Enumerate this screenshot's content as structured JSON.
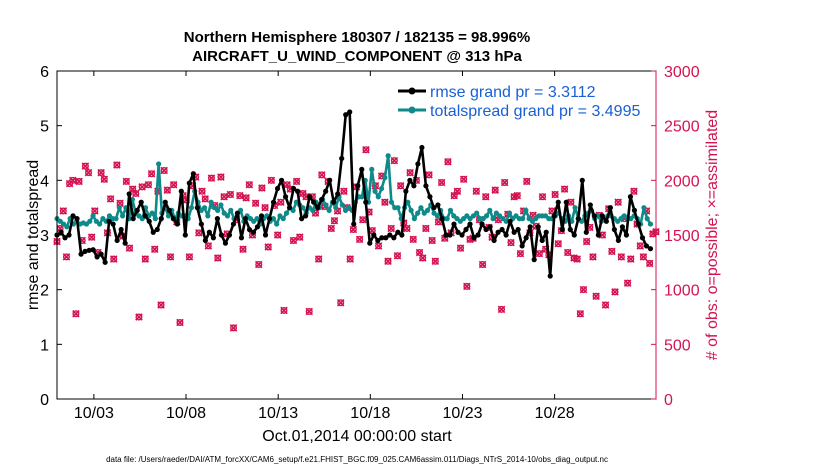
{
  "colors": {
    "rmse": "#000000",
    "spread": "#0f8a8a",
    "obs": "#d3134f",
    "axis": "#000000"
  },
  "chart_data": {
    "type": "line",
    "title": "Northern Hemisphere 180307 / 182135 = 98.996%",
    "subtitle": "AIRCRAFT_U_WIND_COMPONENT @ 313 hPa",
    "xlabel": "Oct.01,2014 00:00:00 start",
    "ylabel": "rmse and totalspread",
    "y2label": "# of obs: o=possible; ×=assimilated",
    "footnote": "data file: /Users/raeder/DAI/ATM_forcXX/CAM6_setup/f.e21.FHIST_BGC.f09_025.CAM6assim.011/Diags_NTrS_2014-10/obs_diag_output.nc",
    "xlim": [
      1,
      33.5
    ],
    "ylim": [
      0,
      6
    ],
    "y2lim": [
      0,
      3000
    ],
    "xticks": [
      3,
      8,
      13,
      18,
      23,
      28
    ],
    "xtick_labels": [
      "10/03",
      "10/08",
      "10/13",
      "10/18",
      "10/23",
      "10/28"
    ],
    "yticks": [
      "0",
      "1",
      "2",
      "3",
      "4",
      "5",
      "6"
    ],
    "y2ticks": [
      "0",
      "500",
      "1000",
      "1500",
      "2000",
      "2500",
      "3000"
    ],
    "series": [
      {
        "name": "rmse grand pr = 3.3112",
        "values": [
          3.0,
          3.05,
          2.95,
          3.0,
          3.35,
          3.3,
          2.65,
          2.7,
          2.72,
          2.73,
          2.6,
          2.65,
          2.5,
          3.25,
          3.2,
          2.9,
          3.1,
          2.85,
          3.75,
          3.3,
          3.45,
          3.6,
          3.35,
          3.25,
          3.05,
          3.1,
          3.3,
          3.6,
          3.45,
          3.3,
          3.2,
          3.8,
          3.0,
          3.95,
          4.12,
          3.5,
          3.2,
          2.9,
          3.05,
          2.95,
          3.3,
          3.0,
          2.85,
          3.0,
          3.2,
          3.4,
          2.95,
          3.3,
          3.1,
          3.05,
          3.15,
          3.35,
          3.0,
          3.3,
          3.6,
          3.85,
          4.0,
          3.7,
          3.5,
          3.85,
          3.8,
          3.3,
          3.35,
          3.7,
          3.6,
          3.5,
          3.65,
          3.8,
          4.0,
          3.6,
          3.75,
          4.4,
          5.2,
          5.25,
          3.2,
          3.9,
          4.2,
          3.6,
          2.85,
          3.0,
          2.9,
          2.95,
          2.95,
          3.0,
          2.95,
          3.05,
          3.0,
          3.8,
          4.0,
          3.9,
          4.3,
          4.6,
          3.9,
          3.7,
          3.5,
          3.55,
          3.3,
          3.0,
          3.0,
          3.2,
          3.05,
          3.0,
          3.1,
          3.2,
          2.95,
          3.0,
          3.2,
          3.1,
          3.15,
          2.9,
          3.05,
          3.1,
          3.0,
          3.25,
          3.05,
          3.1,
          2.8,
          2.95,
          3.15,
          2.55,
          3.15,
          2.9,
          3.05,
          2.25,
          3.35,
          3.6,
          3.1,
          3.6,
          3.1,
          3.0,
          3.3,
          4.0,
          3.05,
          3.55,
          3.35,
          3.0,
          3.35,
          3.25,
          3.5,
          3.1,
          2.9,
          3.15,
          3.0,
          3.7,
          3.45,
          3.2,
          2.95,
          2.8,
          2.75
        ]
      },
      {
        "name": "totalspread grand pr = 3.4995",
        "values": [
          3.3,
          3.25,
          3.2,
          3.15,
          3.3,
          3.2,
          3.25,
          3.2,
          3.22,
          3.2,
          3.25,
          3.35,
          3.25,
          3.2,
          3.3,
          3.25,
          3.35,
          3.3,
          3.3,
          3.5,
          3.35,
          3.5,
          3.3,
          3.65,
          3.4,
          3.35,
          3.3,
          3.5,
          3.35,
          3.4,
          3.3,
          4.3,
          3.4,
          3.5,
          3.35,
          3.45,
          3.3,
          3.4,
          3.35,
          3.35,
          3.3,
          3.5,
          3.8,
          3.6,
          3.45,
          3.5,
          3.35,
          3.6,
          3.5,
          3.45,
          3.55,
          3.4,
          3.35,
          3.45,
          3.3,
          3.35,
          3.45,
          3.25,
          3.35,
          3.3,
          3.25,
          3.3,
          3.2,
          3.3,
          3.35,
          3.25,
          3.3,
          3.2,
          3.35,
          3.3,
          3.4,
          3.5,
          3.45,
          3.6,
          3.55,
          3.5,
          3.4,
          3.5,
          3.45,
          3.6,
          3.5,
          3.65,
          3.55,
          3.45,
          3.6,
          3.5,
          3.7,
          3.55,
          3.45,
          3.5,
          3.45,
          3.6,
          3.7,
          3.7,
          4.0,
          3.6,
          4.2,
          3.8,
          3.7,
          3.85,
          4.05,
          4.45,
          3.6,
          3.5,
          3.5,
          3.3,
          3.5,
          3.6,
          3.45,
          3.3,
          3.4,
          3.5,
          3.4,
          3.45,
          3.55,
          3.4,
          3.35,
          3.45,
          3.3,
          3.3,
          3.45,
          3.35,
          3.3,
          3.25,
          3.3,
          3.35,
          3.3,
          3.35,
          3.4,
          3.3,
          3.3,
          3.35,
          3.45,
          3.3,
          3.4,
          3.35,
          3.3,
          3.25,
          3.4,
          3.3,
          3.35,
          3.3,
          3.3,
          3.45,
          3.3,
          3.25,
          3.3,
          3.35,
          3.35,
          3.35,
          3.3,
          3.3,
          3.35,
          3.4,
          3.3,
          3.25,
          3.35,
          3.25,
          3.5,
          3.3,
          3.25,
          3.35,
          3.4,
          3.45,
          3.3,
          3.35,
          3.25,
          3.3,
          3.35,
          3.35,
          3.3,
          3.25,
          3.3,
          3.35,
          3.3,
          3.3,
          3.35,
          3.3,
          3.2,
          3.5,
          3.3,
          3.2
        ]
      },
      {
        "name": "# of obs (possible / assimilated)",
        "values": [
          1440,
          1560,
          1720,
          1300,
          1970,
          2000,
          780,
          1990,
          1450,
          2130,
          2070,
          1480,
          1720,
          1340,
          2070,
          2010,
          1520,
          1830,
          1280,
          2140,
          1790,
          1490,
          1990,
          1380,
          1920,
          1880,
          750,
          1940,
          1280,
          1960,
          2060,
          1370,
          1900,
          860,
          2090,
          1910,
          1300,
          1960,
          1620,
          700,
          1860,
          1820,
          1300,
          1950,
          2030,
          1520,
          1900,
          1830,
          1400,
          2020,
          1770,
          1290,
          2030,
          1850,
          1510,
          1870,
          650,
          1640,
          1860,
          1370,
          1840,
          1960,
          1500,
          1790,
          1230,
          1930,
          1750,
          1390,
          2000,
          1770,
          1500,
          1800,
          810,
          1960,
          1920,
          1450,
          1990,
          1480,
          1880,
          1850,
          800,
          1850,
          1700,
          1280,
          2050,
          1760,
          1990,
          1560,
          1630,
          1720,
          880,
          1900,
          1750,
          1280,
          1550,
          1940,
          1460,
          1640,
          2280,
          1710,
          1540,
          1950,
          1400,
          2040,
          1800,
          1260,
          1560,
          2180,
          1310,
          1950,
          1610,
          1560,
          2070,
          1460,
          2000,
          1340,
          1290,
          1560,
          2050,
          1450,
          1260,
          1620,
          1980,
          1470,
          2170,
          1520,
          1860,
          1900,
          1380,
          2010,
          1030,
          1460,
          1470,
          1900,
          1640,
          1230,
          1850,
          1570,
          1480,
          1910,
          1640,
          820,
          1980,
          1690,
          1430,
          1850,
          1860,
          1330,
          1720,
          1990,
          1520,
          1680,
          1580,
          1330,
          1850,
          1370,
          1320,
          1720,
          1870,
          1420,
          1540,
          1920,
          1340,
          1800,
          1290,
          1280,
          780,
          1000,
          1440,
          1570,
          1300,
          940,
          1680,
          1500,
          860,
          1740,
          1350,
          980,
          1800,
          1300,
          1650,
          1060,
          1280,
          1900,
          1600,
          1400,
          1300,
          1720,
          1240,
          1510,
          1530
        ]
      }
    ]
  }
}
